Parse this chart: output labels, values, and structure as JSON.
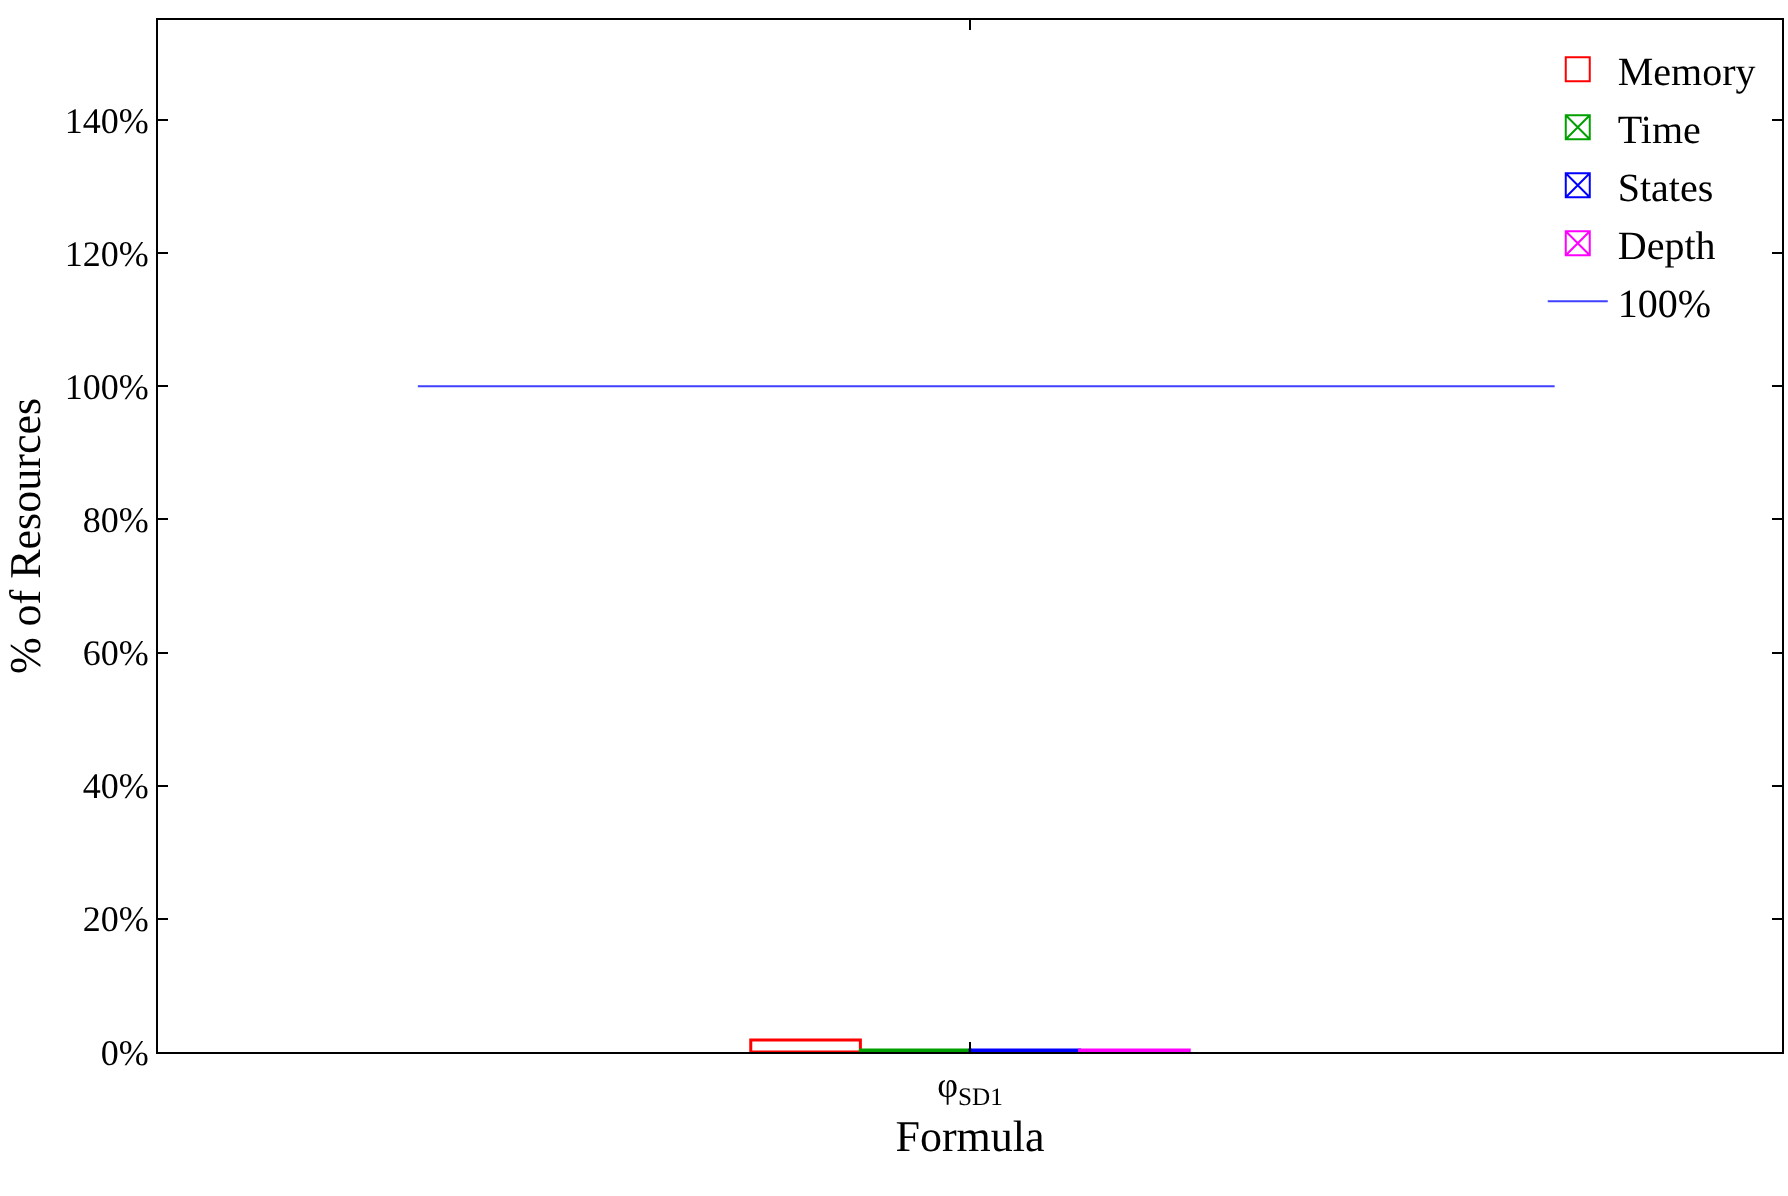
{
  "chart_data": {
    "type": "bar",
    "xlabel": "Formula",
    "ylabel": "% of Resources",
    "categories": [
      "φ$_{SD1}$"
    ],
    "series": [
      {
        "name": "Memory",
        "color": "#ff0000",
        "values": [
          1.8
        ]
      },
      {
        "name": "Time",
        "color": "#00a000",
        "values": [
          0.3
        ]
      },
      {
        "name": "States",
        "color": "#0000ff",
        "values": [
          0.3
        ]
      },
      {
        "name": "Depth",
        "color": "#ff00ff",
        "values": [
          0.3
        ]
      }
    ],
    "ref_lines": [
      {
        "axis": "y",
        "value": 100,
        "label": "100%",
        "color": "#4040ff",
        "line_style": "solid"
      }
    ],
    "ylim": [
      0,
      155
    ],
    "yticks": [
      {
        "value": 0,
        "label": "0%"
      },
      {
        "value": 20,
        "label": "20%"
      },
      {
        "value": 40,
        "label": "40%"
      },
      {
        "value": 60,
        "label": "60%"
      },
      {
        "value": 80,
        "label": "80%"
      },
      {
        "value": 100,
        "label": "100%"
      },
      {
        "value": 120,
        "label": "120%"
      },
      {
        "value": 140,
        "label": "140%"
      }
    ],
    "legend": "top right"
  }
}
